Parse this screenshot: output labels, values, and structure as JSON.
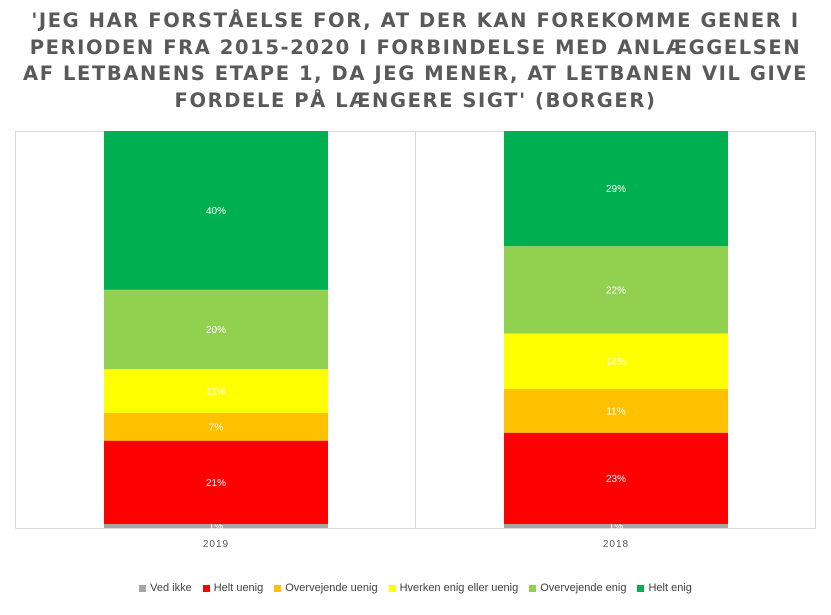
{
  "chart_data": {
    "type": "bar",
    "stacked": true,
    "title": "'JEG HAR FORSTÅELSE FOR, AT DER KAN FOREKOMME GENER I PERIODEN FRA 2015-2020 I FORBINDELSE MED ANLÆGGELSEN AF LETBANENS ETAPE 1, DA JEG MENER, AT LETBANEN VIL GIVE FORDELE PÅ LÆNGERE SIGT' (BORGER)",
    "categories": [
      "2019",
      "2018"
    ],
    "series": [
      {
        "name": "Ved ikke",
        "color": "#a6a6a6",
        "values": [
          1,
          1
        ],
        "labels": [
          "1%",
          "1%"
        ]
      },
      {
        "name": "Helt uenig",
        "color": "#ff0000",
        "values": [
          21,
          23
        ],
        "labels": [
          "21%",
          "23%"
        ]
      },
      {
        "name": "Overvejende uenig",
        "color": "#ffc000",
        "values": [
          7,
          11
        ],
        "labels": [
          "7%",
          "11%"
        ]
      },
      {
        "name": "Hverken enig eller uenig",
        "color": "#ffff00",
        "values": [
          11,
          14
        ],
        "labels": [
          "11%",
          "14%"
        ]
      },
      {
        "name": "Overvejende enig",
        "color": "#92d050",
        "values": [
          20,
          22
        ],
        "labels": [
          "20%",
          "22%"
        ]
      },
      {
        "name": "Helt enig",
        "color": "#00b050",
        "values": [
          40,
          29
        ],
        "labels": [
          "40%",
          "29%"
        ]
      }
    ],
    "ylim": [
      0,
      100
    ],
    "legend_position": "bottom",
    "grid": false
  }
}
